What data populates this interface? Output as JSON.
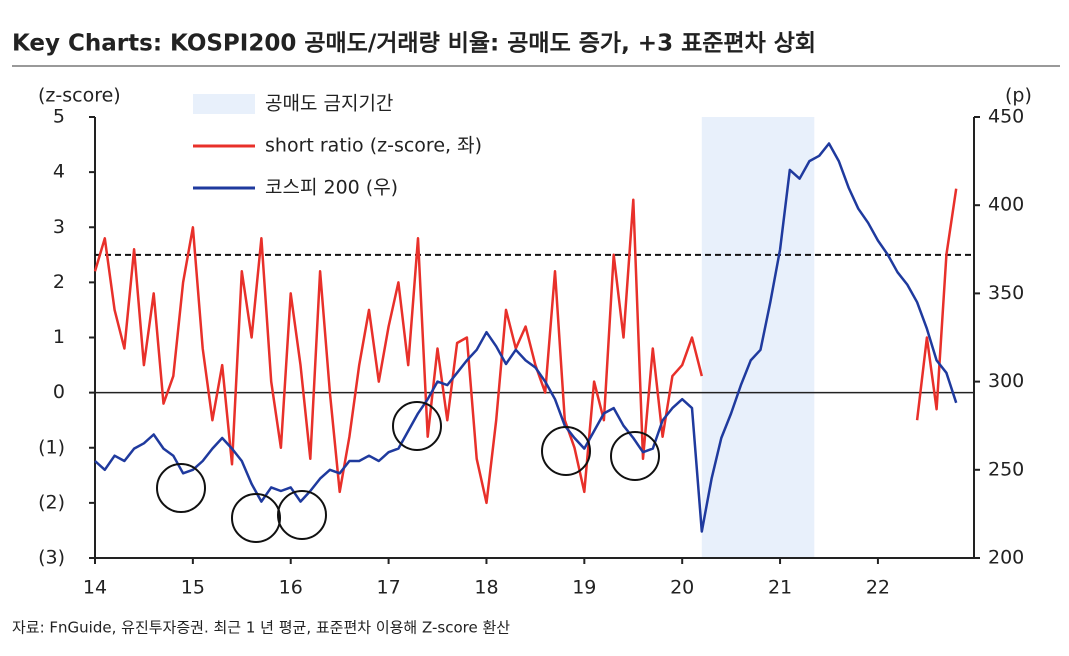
{
  "chart_data": {
    "type": "line",
    "title": "Key Charts: KOSPI200 공매도/거래량 비율: 공매도 증가, +3 표준편차 상회",
    "y_label": "(z-score)",
    "y2_label": "(p)",
    "source": "자료: FnGuide, 유진투자증권. 최근 1 년 평균, 표준편차 이용해 Z-score 환산",
    "xlim": [
      14,
      22.9
    ],
    "xticks": [
      14,
      15,
      16,
      17,
      18,
      19,
      20,
      21,
      22
    ],
    "ylim": [
      -3,
      5
    ],
    "yticks": [
      5,
      4,
      3,
      2,
      1,
      0,
      {
        "value": -1,
        "label": "(1)"
      },
      {
        "value": -2,
        "label": "(2)"
      },
      {
        "value": -3,
        "label": "(3)"
      }
    ],
    "y2lim": [
      200,
      450
    ],
    "y2ticks": [
      450,
      400,
      350,
      300,
      250,
      200
    ],
    "threshold": 2.5,
    "shaded_regions": [
      {
        "start": 20.2,
        "end": 21.35,
        "label": "공매도 금지기간",
        "color": "#e8f0fb"
      }
    ],
    "x": [
      14.0,
      14.1,
      14.2,
      14.3,
      14.4,
      14.5,
      14.6,
      14.7,
      14.8,
      14.9,
      15.0,
      15.1,
      15.2,
      15.3,
      15.4,
      15.5,
      15.6,
      15.7,
      15.8,
      15.9,
      16.0,
      16.1,
      16.2,
      16.3,
      16.4,
      16.5,
      16.6,
      16.7,
      16.8,
      16.9,
      17.0,
      17.1,
      17.2,
      17.3,
      17.4,
      17.5,
      17.6,
      17.7,
      17.8,
      17.9,
      18.0,
      18.1,
      18.2,
      18.3,
      18.4,
      18.5,
      18.6,
      18.7,
      18.8,
      18.9,
      19.0,
      19.1,
      19.2,
      19.3,
      19.4,
      19.5,
      19.6,
      19.7,
      19.8,
      19.9,
      20.0,
      20.1,
      20.2,
      20.3,
      20.4,
      20.5,
      20.6,
      20.7,
      20.8,
      20.9,
      21.0,
      21.1,
      21.2,
      21.3,
      21.4,
      21.5,
      21.6,
      21.7,
      21.8,
      21.9,
      22.0,
      22.1,
      22.2,
      22.3,
      22.4,
      22.5,
      22.6,
      22.7,
      22.8
    ],
    "series": [
      {
        "name": "short ratio (z-score, 좌)",
        "color": "#e8302a",
        "values": [
          2.2,
          2.8,
          1.5,
          0.8,
          2.6,
          0.5,
          1.8,
          -0.2,
          0.3,
          2.0,
          3.0,
          0.8,
          -0.5,
          0.5,
          -1.3,
          2.2,
          1.0,
          2.8,
          0.2,
          -1.0,
          1.8,
          0.5,
          -1.2,
          2.2,
          0.0,
          -1.8,
          -0.8,
          0.5,
          1.5,
          0.2,
          1.2,
          2.0,
          0.5,
          2.8,
          -0.8,
          0.8,
          -0.5,
          0.9,
          1.0,
          -1.2,
          -2.0,
          -0.5,
          1.5,
          0.8,
          1.2,
          0.5,
          0.0,
          2.2,
          -0.5,
          -1.0,
          -1.8,
          0.2,
          -0.5,
          2.5,
          1.0,
          3.5,
          -1.2,
          0.8,
          -0.8,
          0.3,
          0.5,
          1.0,
          0.3,
          null,
          null,
          null,
          null,
          null,
          null,
          null,
          null,
          null,
          null,
          null,
          null,
          null,
          null,
          null,
          null,
          null,
          null,
          null,
          null,
          null,
          -0.5,
          1.0,
          -0.3,
          2.5,
          3.7
        ]
      },
      {
        "name": "코스피 200 (우)",
        "color": "#1f3a9e",
        "axis": "y2",
        "values": [
          255,
          250,
          258,
          255,
          262,
          265,
          270,
          262,
          258,
          248,
          250,
          255,
          262,
          268,
          262,
          255,
          242,
          232,
          240,
          238,
          240,
          232,
          238,
          245,
          250,
          248,
          255,
          255,
          258,
          255,
          260,
          262,
          272,
          282,
          290,
          300,
          298,
          305,
          312,
          318,
          328,
          320,
          310,
          318,
          312,
          308,
          300,
          290,
          275,
          268,
          262,
          272,
          282,
          285,
          275,
          268,
          260,
          262,
          278,
          285,
          290,
          285,
          215,
          245,
          268,
          282,
          298,
          312,
          318,
          345,
          375,
          420,
          415,
          425,
          428,
          435,
          425,
          410,
          398,
          390,
          380,
          372,
          362,
          355,
          345,
          330,
          312,
          305,
          288
        ]
      }
    ]
  }
}
